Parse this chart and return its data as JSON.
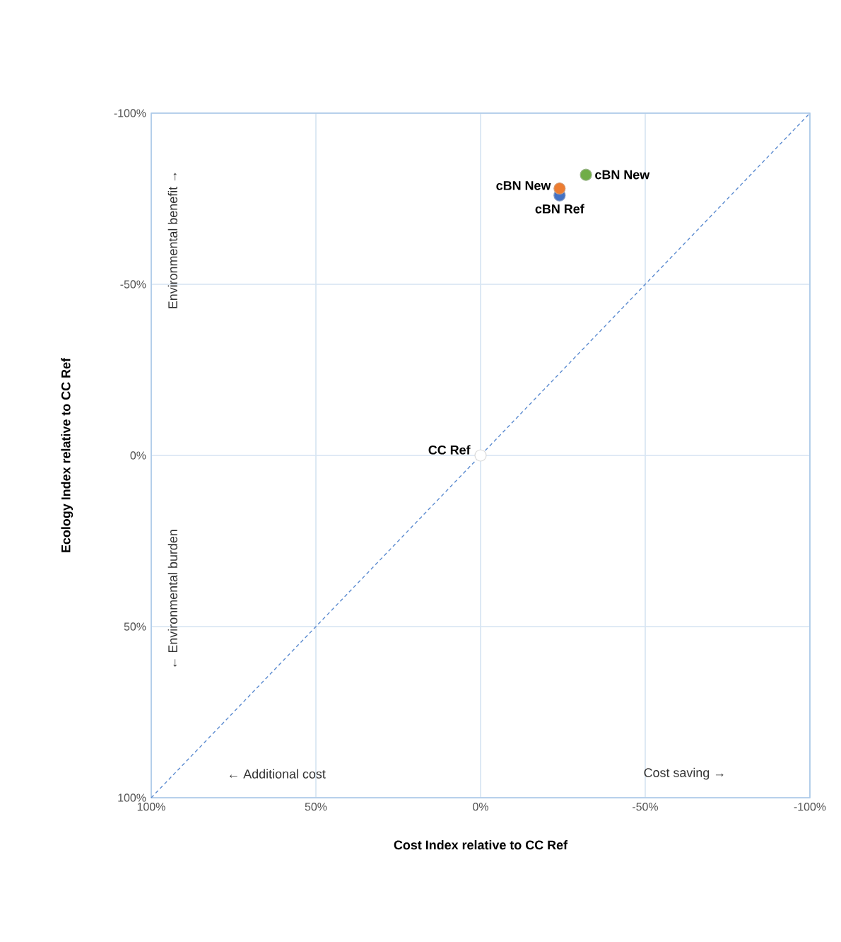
{
  "chart_data": {
    "type": "scatter",
    "xlabel": "Cost Index relative to CC Ref",
    "ylabel": "Ecology Index relative to CC Ref",
    "xlim": [
      100,
      -100
    ],
    "ylim": [
      100,
      -100
    ],
    "xticks": [
      {
        "value": 100,
        "label": "100%"
      },
      {
        "value": 50,
        "label": "50%"
      },
      {
        "value": 0,
        "label": "0%"
      },
      {
        "value": -50,
        "label": "-50%"
      },
      {
        "value": -100,
        "label": "-100%"
      }
    ],
    "yticks": [
      {
        "value": 100,
        "label": "100%"
      },
      {
        "value": 50,
        "label": "50%"
      },
      {
        "value": 0,
        "label": "0%"
      },
      {
        "value": -50,
        "label": "-50%"
      },
      {
        "value": -100,
        "label": "-100%"
      }
    ],
    "grid": true,
    "marker": "circle",
    "series": [
      {
        "type": "line",
        "line_style": "dashed",
        "marker": "none",
        "color": "#5b8bd0",
        "x": [
          100,
          -100
        ],
        "values": [
          100,
          -100
        ]
      },
      {
        "name": "CC Ref",
        "color": "#ffffff",
        "x": [
          0
        ],
        "values": [
          0
        ]
      },
      {
        "name": "cBN Ref",
        "color": "#4472c4",
        "x": [
          -24
        ],
        "values": [
          -76
        ]
      },
      {
        "name": "cBN New",
        "color": "#ed7d31",
        "x": [
          -24
        ],
        "values": [
          -78
        ]
      },
      {
        "name": "cBN New",
        "color": "#70ad47",
        "x": [
          -32
        ],
        "values": [
          -82
        ]
      }
    ],
    "annotations": [
      "← Environmental burden",
      "Environmental benefit →",
      "← Additional cost",
      "Cost saving →"
    ]
  }
}
